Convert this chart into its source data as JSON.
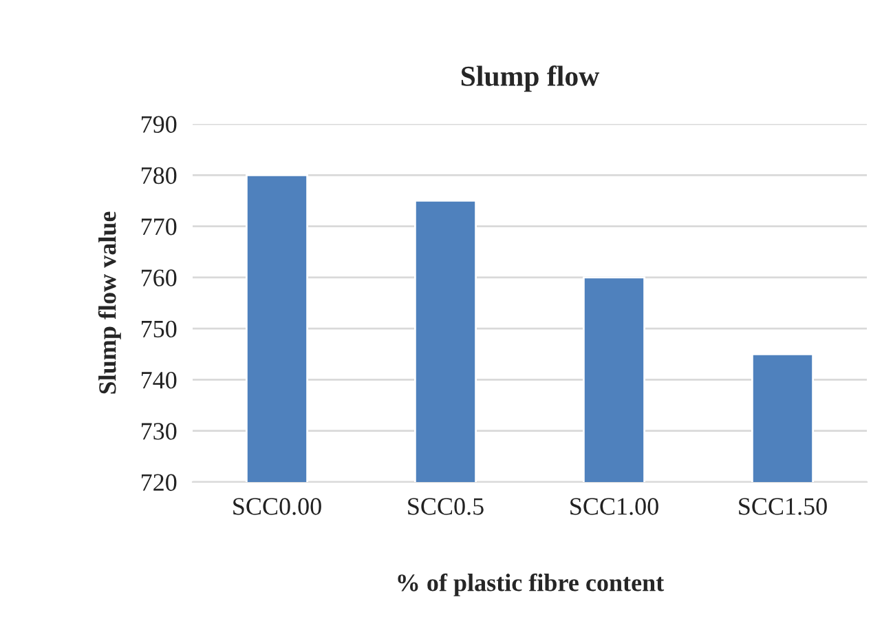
{
  "chart_data": {
    "type": "bar",
    "title": "Slump flow",
    "xlabel": "% of plastic fibre content",
    "ylabel": "Slump flow value",
    "categories": [
      "SCC0.00",
      "SCC0.5",
      "SCC1.00",
      "SCC1.50"
    ],
    "values": [
      780,
      775,
      760,
      745
    ],
    "color": "#4f81bd",
    "ylim": [
      720,
      790
    ],
    "yticks": [
      720,
      730,
      740,
      750,
      760,
      770,
      780,
      790
    ],
    "grid": "y"
  }
}
